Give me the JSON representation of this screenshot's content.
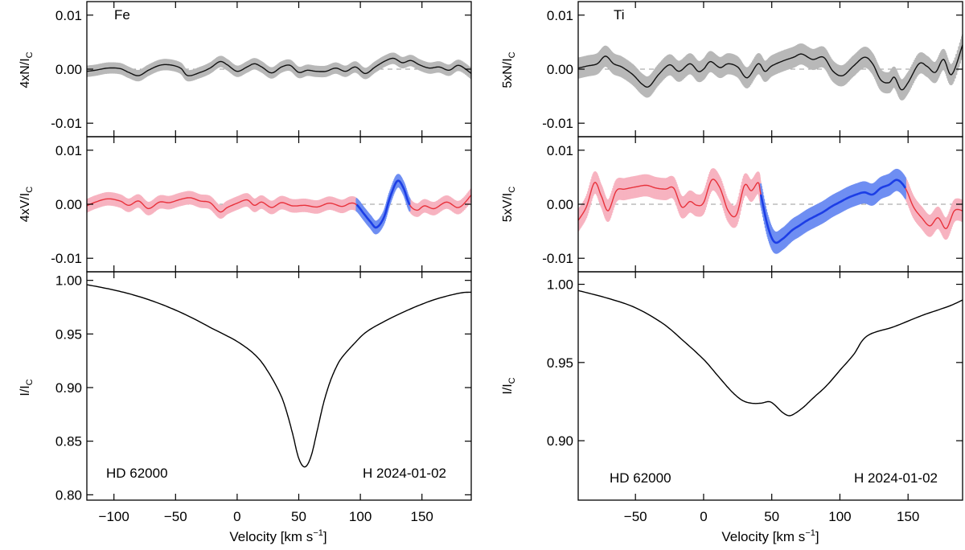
{
  "figure": {
    "xlabel": "Velocity [km s",
    "xlabel_sup": "−1",
    "xlabel_end": "]",
    "star": "HD 62000",
    "date": "H 2024-01-02"
  },
  "chart_data": [
    {
      "type": "line",
      "element": "Fe",
      "xlim": [
        -122,
        190
      ],
      "xticks": [
        -100,
        -50,
        0,
        50,
        100,
        150
      ],
      "xtick_labels": [
        "−100",
        "−50",
        "0",
        "50",
        "100",
        "150"
      ],
      "null_panel": {
        "ylabel": "4xN/I",
        "ylabel_sub": "C",
        "ylim": [
          -0.0125,
          0.0125
        ],
        "yticks": [
          0.01,
          0.0,
          -0.01
        ],
        "ytick_labels": [
          "0.01",
          "0.00",
          "-0.01"
        ],
        "color": "#111111",
        "band_color": "#b8b8b8",
        "err": 0.0009,
        "x": [
          -122,
          -115,
          -105,
          -95,
          -88,
          -80,
          -72,
          -63,
          -55,
          -46,
          -40,
          -30,
          -22,
          -14,
          -8,
          0,
          8,
          14,
          20,
          28,
          36,
          43,
          50,
          57,
          64,
          72,
          80,
          88,
          96,
          104,
          112,
          120,
          127,
          134,
          141,
          148,
          156,
          164,
          172,
          180,
          190
        ],
        "y": [
          -0.0004,
          -0.0002,
          0.0002,
          0.0001,
          -0.0006,
          -0.0012,
          -0.0002,
          0.0007,
          0.0008,
          0.0002,
          -0.0012,
          -0.0006,
          0.0002,
          0.0014,
          0.0008,
          -0.0004,
          0.0004,
          0.001,
          0.0004,
          -0.0007,
          0.0004,
          0.0007,
          -0.0006,
          -0.0002,
          -0.0004,
          -0.0004,
          0.0002,
          -0.0004,
          0.0004,
          -0.0008,
          0.0004,
          0.0015,
          0.002,
          0.0012,
          0.0016,
          0.0008,
          0.0002,
          0.0004,
          -0.0002,
          0.0007,
          -0.0008
        ]
      },
      "stokes_panel": {
        "ylabel": "4xV/I",
        "ylabel_sub": "C",
        "ylim": [
          -0.0125,
          0.0125
        ],
        "yticks": [
          0.01,
          0.0,
          -0.01
        ],
        "ytick_labels": [
          "0.01",
          "0.00",
          "-0.01"
        ],
        "color": "#e8323c",
        "band_color": "#f7b3c0",
        "sig_color": "#1c3ee6",
        "sig_band_color": "#6f8ef2",
        "sig_range": [
          97,
          140
        ],
        "err": 0.0011,
        "x": [
          -122,
          -115,
          -105,
          -95,
          -88,
          -80,
          -72,
          -63,
          -55,
          -46,
          -38,
          -30,
          -22,
          -14,
          -8,
          0,
          8,
          14,
          20,
          28,
          36,
          45,
          55,
          65,
          75,
          85,
          92,
          97,
          103,
          108,
          113,
          119,
          124,
          130,
          135,
          140,
          146,
          152,
          160,
          170,
          180,
          190
        ],
        "y": [
          -0.0003,
          0.0004,
          0.001,
          0.0006,
          -0.0002,
          0.0006,
          -0.0008,
          0.0004,
          0.0003,
          0.0009,
          0.0012,
          0.0006,
          0.0003,
          -0.0014,
          -0.0006,
          0.0002,
          0.0008,
          -0.0002,
          0.0004,
          -0.0006,
          0.0003,
          -0.0003,
          -0.0002,
          -0.0005,
          0.0002,
          -0.0004,
          0.0002,
          -0.0001,
          -0.0018,
          -0.0032,
          -0.0043,
          -0.0025,
          0.0012,
          0.0043,
          0.003,
          -0.0001,
          -0.0011,
          -0.0003,
          -0.0008,
          0.0004,
          -0.0006,
          0.0017
        ]
      },
      "intensity_panel": {
        "ylabel": "I/I",
        "ylabel_sub": "C",
        "ylim": [
          0.795,
          1.008
        ],
        "yticks": [
          1.0,
          0.95,
          0.9,
          0.85,
          0.8
        ],
        "ytick_labels": [
          "1.00",
          "0.95",
          "0.90",
          "0.85",
          "0.80"
        ],
        "color": "#000000",
        "x": [
          -122,
          -100,
          -80,
          -60,
          -40,
          -20,
          0,
          15,
          25,
          35,
          40,
          45,
          50,
          55,
          60,
          65,
          70,
          75,
          80,
          85,
          95,
          105,
          120,
          140,
          160,
          180,
          190
        ],
        "y": [
          0.996,
          0.991,
          0.985,
          0.977,
          0.967,
          0.955,
          0.943,
          0.93,
          0.915,
          0.894,
          0.878,
          0.857,
          0.834,
          0.826,
          0.836,
          0.86,
          0.885,
          0.904,
          0.918,
          0.928,
          0.941,
          0.952,
          0.962,
          0.973,
          0.982,
          0.988,
          0.989
        ]
      }
    },
    {
      "type": "line",
      "element": "Ti",
      "xlim": [
        -92,
        190
      ],
      "xticks": [
        -50,
        0,
        50,
        100,
        150
      ],
      "xtick_labels": [
        "−50",
        "0",
        "50",
        "100",
        "150"
      ],
      "null_panel": {
        "ylabel": "5xN/I",
        "ylabel_sub": "C",
        "ylim": [
          -0.0125,
          0.0125
        ],
        "yticks": [
          0.01,
          0.0,
          -0.01
        ],
        "ytick_labels": [
          "0.01",
          "0.00",
          "-0.01"
        ],
        "color": "#111111",
        "band_color": "#b8b8b8",
        "err": 0.0018,
        "x": [
          -92,
          -85,
          -78,
          -72,
          -66,
          -60,
          -52,
          -45,
          -40,
          -33,
          -25,
          -18,
          -10,
          -4,
          0,
          5,
          12,
          18,
          25,
          32,
          40,
          45,
          50,
          58,
          66,
          72,
          80,
          88,
          95,
          102,
          110,
          118,
          124,
          130,
          136,
          140,
          145,
          150,
          158,
          164,
          170,
          176,
          182,
          190
        ],
        "y": [
          0.0002,
          0.0006,
          0.001,
          0.0024,
          0.001,
          0.0004,
          -0.001,
          -0.0028,
          -0.0032,
          -0.001,
          0.0008,
          -0.0004,
          0.001,
          -0.0004,
          0.0,
          0.0014,
          0.0003,
          0.001,
          0.0004,
          -0.0016,
          0.001,
          -0.0004,
          0.0006,
          0.0015,
          0.0022,
          0.0028,
          0.0018,
          0.0022,
          -0.0004,
          -0.0012,
          0.0006,
          0.0022,
          0.001,
          -0.002,
          -0.0025,
          -0.0015,
          -0.0038,
          -0.0025,
          0.001,
          0.0005,
          -0.0006,
          0.0018,
          -0.001,
          0.0045
        ]
      },
      "stokes_panel": {
        "ylabel": "5xV/I",
        "ylabel_sub": "C",
        "ylim": [
          -0.0125,
          0.0125
        ],
        "yticks": [
          0.01,
          0.0,
          -0.01
        ],
        "ytick_labels": [
          "0.01",
          "0.00",
          "-0.01"
        ],
        "color": "#e8323c",
        "band_color": "#f7b3c0",
        "sig_color": "#1c3ee6",
        "sig_band_color": "#6f8ef2",
        "sig_range": [
          42,
          148
        ],
        "err": 0.0019,
        "x": [
          -92,
          -86,
          -80,
          -75,
          -70,
          -64,
          -58,
          -50,
          -42,
          -35,
          -28,
          -22,
          -16,
          -10,
          -5,
          0,
          6,
          12,
          18,
          24,
          30,
          35,
          40,
          42,
          47,
          52,
          58,
          65,
          70,
          76,
          82,
          88,
          94,
          100,
          106,
          112,
          118,
          124,
          130,
          136,
          142,
          148,
          154,
          160,
          166,
          172,
          178,
          184,
          190
        ],
        "y": [
          -0.003,
          -0.0005,
          0.004,
          0.0015,
          -0.0012,
          0.0025,
          0.0028,
          0.0032,
          0.0035,
          0.003,
          0.0028,
          0.003,
          -0.0005,
          0.0005,
          -0.0002,
          0.0003,
          0.0045,
          0.003,
          -0.0012,
          -0.002,
          0.0035,
          0.0025,
          0.004,
          0.0018,
          -0.004,
          -0.007,
          -0.0064,
          -0.0048,
          -0.004,
          -0.003,
          -0.0022,
          -0.0014,
          -0.0004,
          0.0004,
          0.0012,
          0.0018,
          0.0022,
          0.0018,
          0.003,
          0.0036,
          0.0045,
          0.003,
          -0.0005,
          -0.0025,
          -0.004,
          -0.0025,
          -0.0045,
          -0.0012,
          -0.0012
        ]
      },
      "intensity_panel": {
        "ylabel": "I/I",
        "ylabel_sub": "C",
        "ylim": [
          0.862,
          1.008
        ],
        "yticks": [
          1.0,
          0.95,
          0.9
        ],
        "ytick_labels": [
          "1.00",
          "0.95",
          "0.90"
        ],
        "color": "#000000",
        "x": [
          -92,
          -70,
          -50,
          -30,
          -15,
          0,
          10,
          20,
          28,
          35,
          42,
          48,
          52,
          58,
          63,
          68,
          74,
          80,
          90,
          100,
          110,
          120,
          140,
          160,
          180,
          190
        ],
        "y": [
          0.996,
          0.991,
          0.985,
          0.975,
          0.964,
          0.952,
          0.942,
          0.932,
          0.926,
          0.924,
          0.924,
          0.925,
          0.923,
          0.918,
          0.916,
          0.918,
          0.922,
          0.927,
          0.935,
          0.945,
          0.955,
          0.967,
          0.973,
          0.98,
          0.986,
          0.99
        ]
      }
    }
  ]
}
